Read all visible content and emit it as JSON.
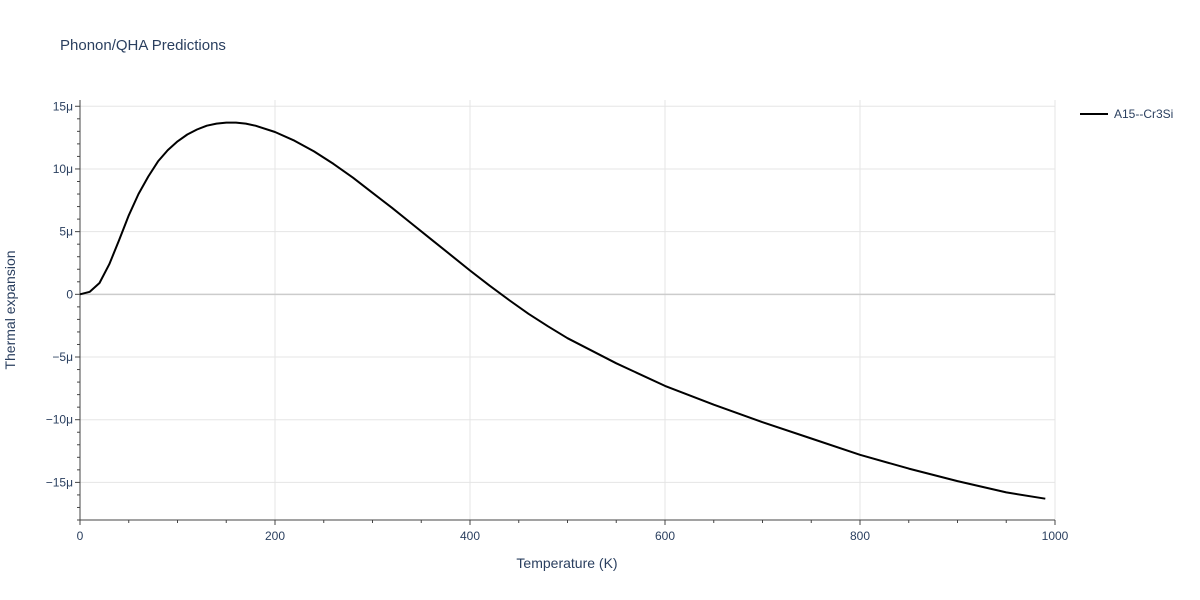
{
  "chart_data": {
    "type": "line",
    "title": "Phonon/QHA Predictions",
    "xlabel": "Temperature (K)",
    "ylabel": "Thermal expansion",
    "xlim": [
      0,
      1000
    ],
    "ylim": [
      -1.8e-05,
      1.55e-05
    ],
    "x_ticks": [
      0,
      200,
      400,
      600,
      800,
      1000
    ],
    "x_tick_labels": [
      "0",
      "200",
      "400",
      "600",
      "800",
      "1000"
    ],
    "y_ticks": [
      1.5e-05,
      1e-05,
      5e-06,
      0,
      -5e-06,
      -1e-05,
      -1.5e-05
    ],
    "y_tick_labels": [
      "15μ",
      "10μ",
      "5μ",
      "0",
      "−5μ",
      "−10μ",
      "−15μ"
    ],
    "grid": true,
    "legend_position": "top-right",
    "series": [
      {
        "name": "A15--Cr3Si",
        "color": "#000000",
        "x": [
          0,
          10,
          20,
          30,
          40,
          50,
          60,
          70,
          80,
          90,
          100,
          110,
          120,
          130,
          140,
          150,
          160,
          170,
          180,
          200,
          220,
          240,
          260,
          280,
          300,
          320,
          340,
          360,
          380,
          400,
          420,
          440,
          460,
          480,
          500,
          550,
          600,
          650,
          700,
          750,
          800,
          850,
          900,
          950,
          990
        ],
        "y": [
          0,
          2e-07,
          9e-07,
          2.4e-06,
          4.3e-06,
          6.3e-06,
          8e-06,
          9.4e-06,
          1.06e-05,
          1.15e-05,
          1.22e-05,
          1.275e-05,
          1.315e-05,
          1.345e-05,
          1.362e-05,
          1.37e-05,
          1.37e-05,
          1.362e-05,
          1.345e-05,
          1.295e-05,
          1.225e-05,
          1.14e-05,
          1.04e-05,
          9.3e-06,
          8.1e-06,
          6.9e-06,
          5.65e-06,
          4.4e-06,
          3.15e-06,
          1.9e-06,
          7e-07,
          -4.5e-07,
          -1.55e-06,
          -2.55e-06,
          -3.5e-06,
          -5.5e-06,
          -7.3e-06,
          -8.8e-06,
          -1.02e-05,
          -1.15e-05,
          -1.28e-05,
          -1.39e-05,
          -1.49e-05,
          -1.58e-05,
          -1.63e-05
        ]
      }
    ]
  }
}
